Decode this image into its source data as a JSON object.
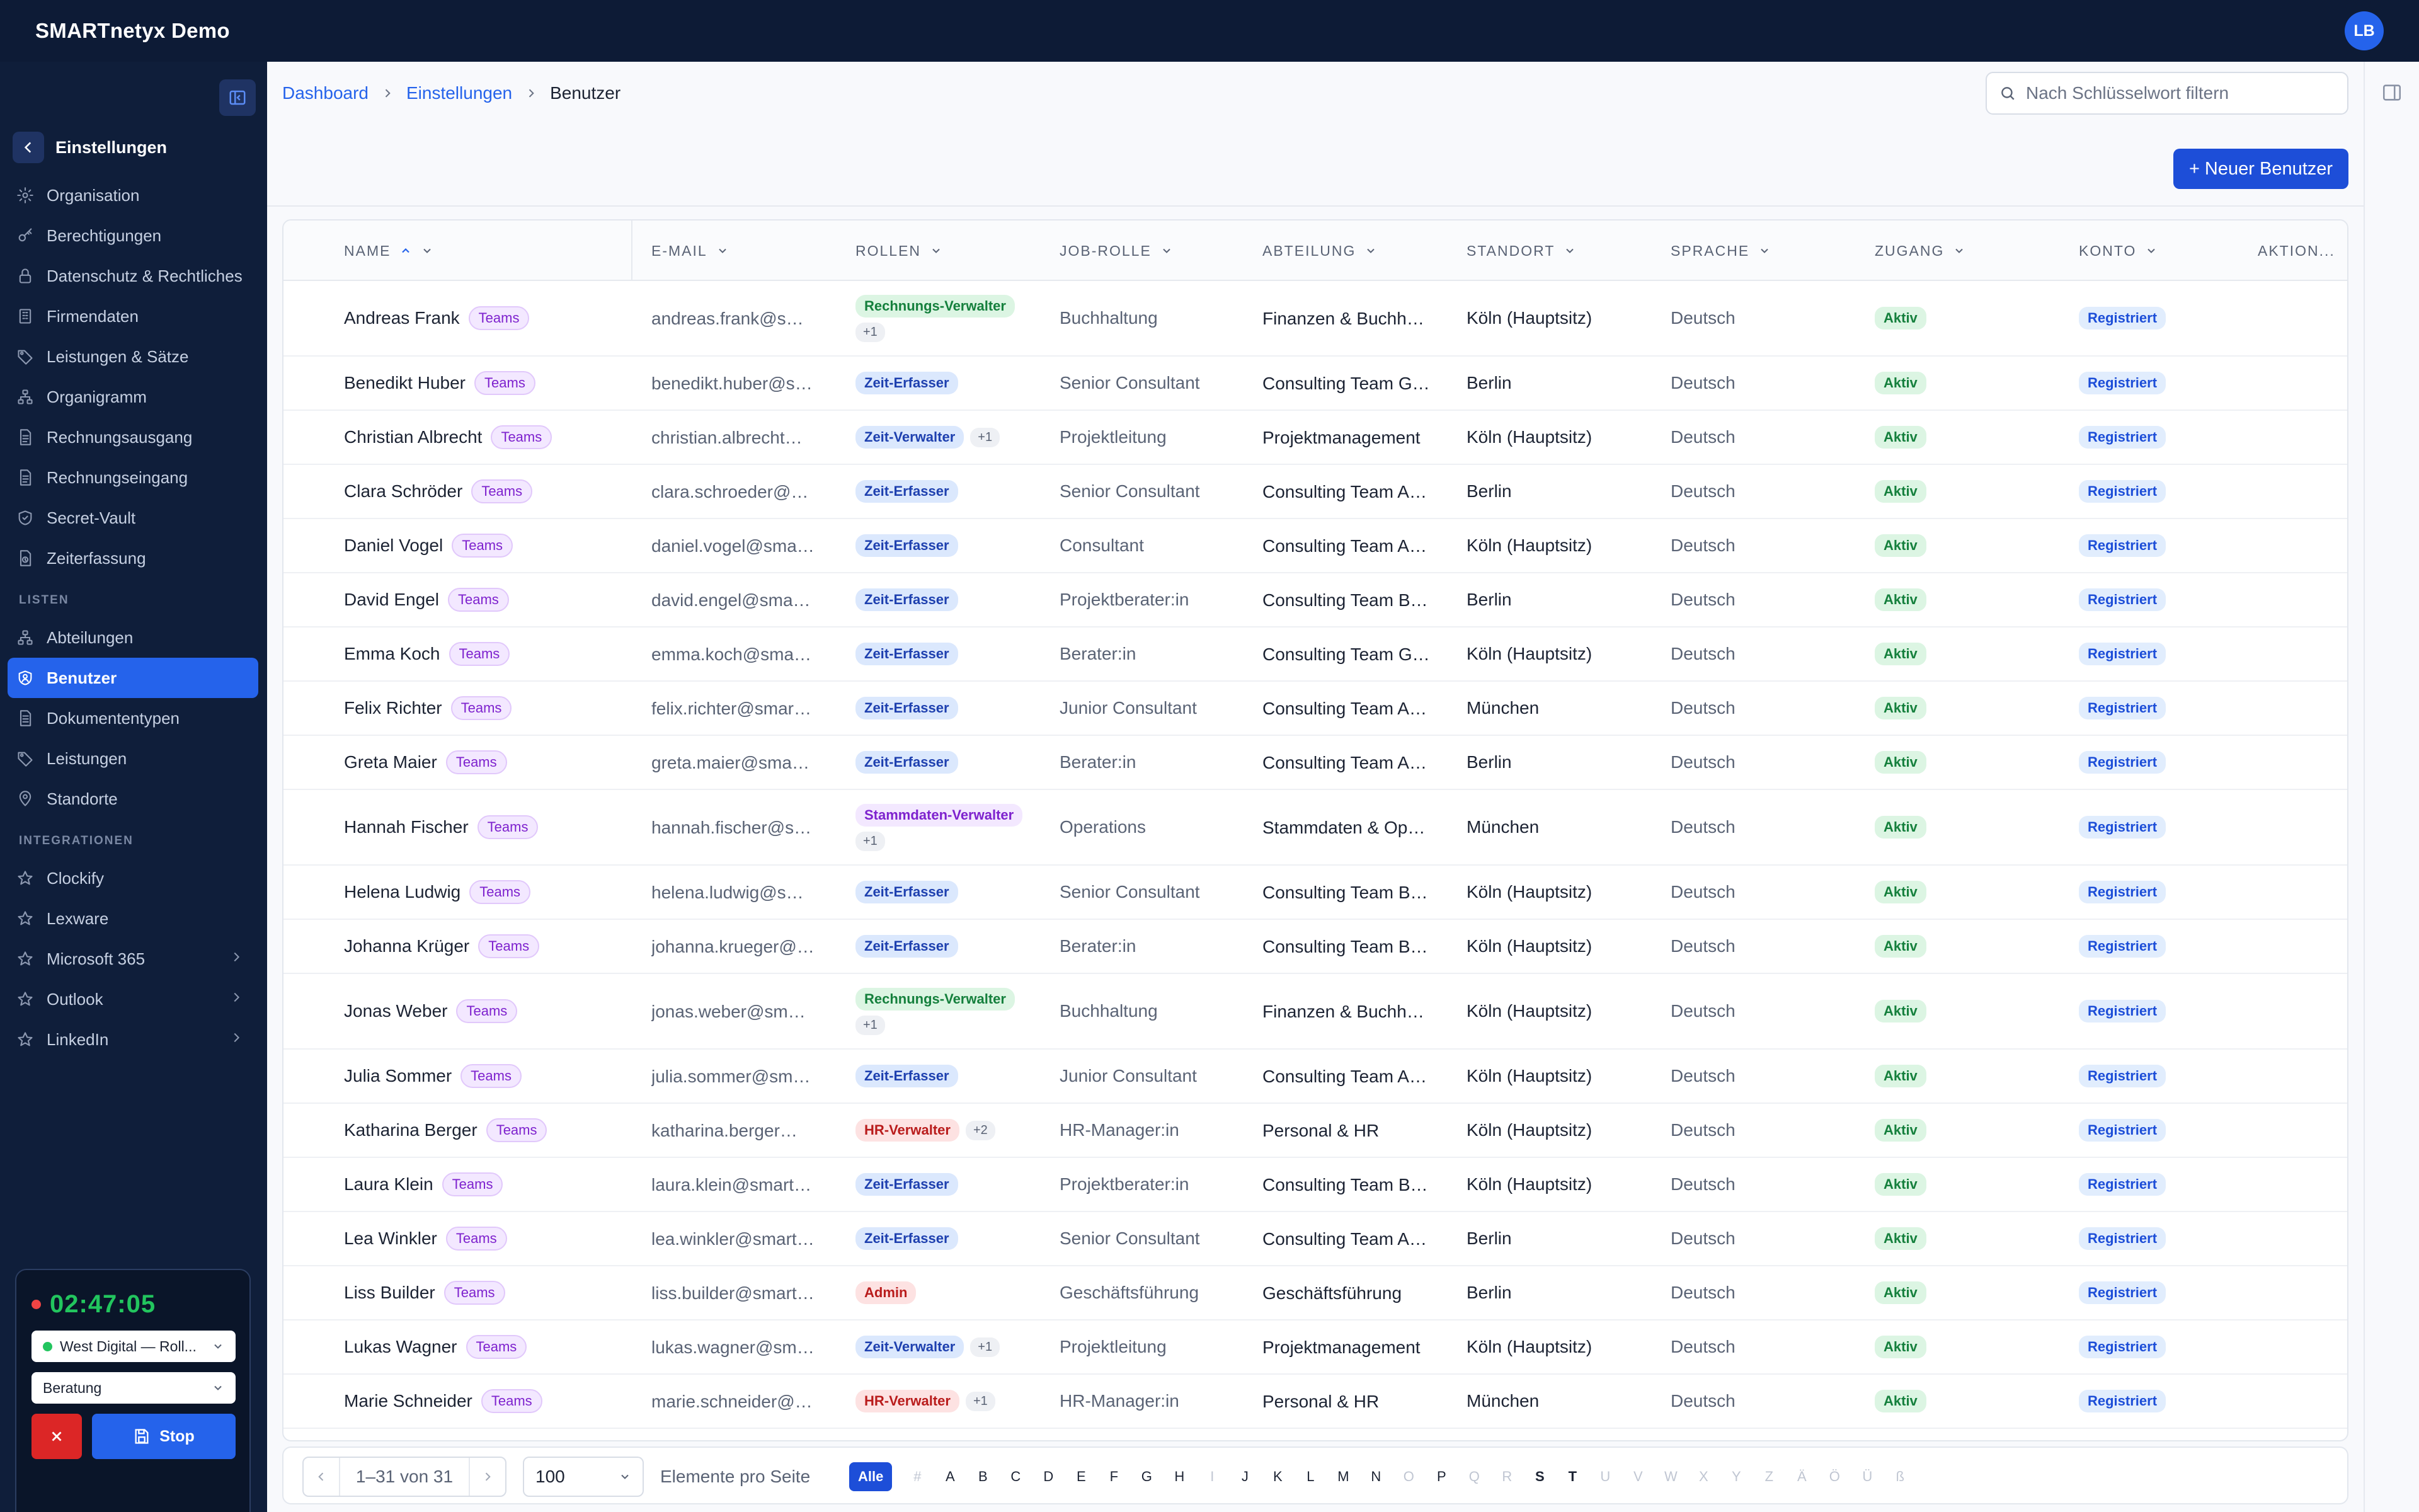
{
  "app": {
    "title": "SMARTnetyx Demo",
    "user_initials": "LB"
  },
  "sidebar": {
    "back_label": "Einstellungen",
    "items": [
      {
        "label": "Organisation",
        "icon": "gear-icon"
      },
      {
        "label": "Berechtigungen",
        "icon": "key-icon"
      },
      {
        "label": "Datenschutz & Rechtliches",
        "icon": "lock-icon"
      },
      {
        "label": "Firmendaten",
        "icon": "building-icon"
      },
      {
        "label": "Leistungen & Sätze",
        "icon": "tag-icon"
      },
      {
        "label": "Organigramm",
        "icon": "org-chart-icon"
      },
      {
        "label": "Rechnungsausgang",
        "icon": "invoice-icon"
      },
      {
        "label": "Rechnungseingang",
        "icon": "invoice-icon"
      },
      {
        "label": "Secret-Vault",
        "icon": "shield-icon"
      },
      {
        "label": "Zeiterfassung",
        "icon": "clock-file-icon"
      }
    ],
    "lists_title": "LISTEN",
    "lists": [
      {
        "label": "Abteilungen",
        "icon": "org-chart-icon"
      },
      {
        "label": "Benutzer",
        "icon": "user-shield-icon",
        "active": true
      },
      {
        "label": "Dokumententypen",
        "icon": "document-icon"
      },
      {
        "label": "Leistungen",
        "icon": "tag-icon"
      },
      {
        "label": "Standorte",
        "icon": "location-pin-icon"
      }
    ],
    "integrations_title": "INTEGRATIONEN",
    "integrations": [
      {
        "label": "Clockify",
        "icon": "star-icon"
      },
      {
        "label": "Lexware",
        "icon": "star-icon"
      },
      {
        "label": "Microsoft 365",
        "icon": "star-icon",
        "expandable": true
      },
      {
        "label": "Outlook",
        "icon": "star-icon",
        "expandable": true
      },
      {
        "label": "LinkedIn",
        "icon": "star-icon",
        "expandable": true
      }
    ]
  },
  "timer": {
    "time": "02:47:05",
    "project": "West Digital — Roll...",
    "activity": "Beratung",
    "stop_label": "Stop"
  },
  "breadcrumb": {
    "items": [
      "Dashboard",
      "Einstellungen"
    ],
    "current": "Benutzer"
  },
  "search": {
    "placeholder": "Nach Schlüsselwort filtern"
  },
  "actions": {
    "new_user": "+ Neuer Benutzer"
  },
  "table": {
    "columns": [
      "NAME",
      "E-MAIL",
      "ROLLEN",
      "JOB-ROLLE",
      "ABTEILUNG",
      "STANDORT",
      "SPRACHE",
      "ZUGANG",
      "KONTO",
      "AKTION..."
    ],
    "rows": [
      {
        "name": "Andreas Frank",
        "tag": "Teams",
        "email": "andreas.frank@smartnetyx.de",
        "role": "Rechnungs-Verwalter",
        "role_color": "green",
        "more": "+1",
        "job": "Buchhaltung",
        "dept": "Finanzen & Buchhaltung",
        "site": "Köln (Hauptsitz)",
        "lang": "Deutsch",
        "access": "Aktiv",
        "account": "Registriert"
      },
      {
        "name": "Benedikt Huber",
        "tag": "Teams",
        "email": "benedikt.huber@smartnetyx.de",
        "role": "Zeit-Erfasser",
        "role_color": "blue",
        "more": "",
        "job": "Senior Consultant",
        "dept": "Consulting Team Gamma",
        "site": "Berlin",
        "lang": "Deutsch",
        "access": "Aktiv",
        "account": "Registriert"
      },
      {
        "name": "Christian Albrecht",
        "tag": "Teams",
        "email": "christian.albrecht@smartnetyx.de",
        "role": "Zeit-Verwalter",
        "role_color": "blue",
        "more": "+1",
        "job": "Projektleitung",
        "dept": "Projektmanagement",
        "site": "Köln (Hauptsitz)",
        "lang": "Deutsch",
        "access": "Aktiv",
        "account": "Registriert"
      },
      {
        "name": "Clara Schröder",
        "tag": "Teams",
        "email": "clara.schroeder@smartnetyx.de",
        "role": "Zeit-Erfasser",
        "role_color": "blue",
        "more": "",
        "job": "Senior Consultant",
        "dept": "Consulting Team Alpha",
        "site": "Berlin",
        "lang": "Deutsch",
        "access": "Aktiv",
        "account": "Registriert"
      },
      {
        "name": "Daniel Vogel",
        "tag": "Teams",
        "email": "daniel.vogel@smartnetyx.de",
        "role": "Zeit-Erfasser",
        "role_color": "blue",
        "more": "",
        "job": "Consultant",
        "dept": "Consulting Team Alpha",
        "site": "Köln (Hauptsitz)",
        "lang": "Deutsch",
        "access": "Aktiv",
        "account": "Registriert"
      },
      {
        "name": "David Engel",
        "tag": "Teams",
        "email": "david.engel@smartnetyx.de",
        "role": "Zeit-Erfasser",
        "role_color": "blue",
        "more": "",
        "job": "Projektberater:in",
        "dept": "Consulting Team Beta",
        "site": "Berlin",
        "lang": "Deutsch",
        "access": "Aktiv",
        "account": "Registriert"
      },
      {
        "name": "Emma Koch",
        "tag": "Teams",
        "email": "emma.koch@smartnetyx.de",
        "role": "Zeit-Erfasser",
        "role_color": "blue",
        "more": "",
        "job": "Berater:in",
        "dept": "Consulting Team Gamma",
        "site": "Köln (Hauptsitz)",
        "lang": "Deutsch",
        "access": "Aktiv",
        "account": "Registriert"
      },
      {
        "name": "Felix Richter",
        "tag": "Teams",
        "email": "felix.richter@smartnetyx.de",
        "role": "Zeit-Erfasser",
        "role_color": "blue",
        "more": "",
        "job": "Junior Consultant",
        "dept": "Consulting Team Alpha",
        "site": "München",
        "lang": "Deutsch",
        "access": "Aktiv",
        "account": "Registriert"
      },
      {
        "name": "Greta Maier",
        "tag": "Teams",
        "email": "greta.maier@smartnetyx.de",
        "role": "Zeit-Erfasser",
        "role_color": "blue",
        "more": "",
        "job": "Berater:in",
        "dept": "Consulting Team Alpha",
        "site": "Berlin",
        "lang": "Deutsch",
        "access": "Aktiv",
        "account": "Registriert"
      },
      {
        "name": "Hannah Fischer",
        "tag": "Teams",
        "email": "hannah.fischer@smartnetyx.de",
        "role": "Stammdaten-Verwalter",
        "role_color": "purple",
        "more": "+1",
        "job": "Operations",
        "dept": "Stammdaten & Operations",
        "site": "München",
        "lang": "Deutsch",
        "access": "Aktiv",
        "account": "Registriert"
      },
      {
        "name": "Helena Ludwig",
        "tag": "Teams",
        "email": "helena.ludwig@smartnetyx.de",
        "role": "Zeit-Erfasser",
        "role_color": "blue",
        "more": "",
        "job": "Senior Consultant",
        "dept": "Consulting Team Beta",
        "site": "Köln (Hauptsitz)",
        "lang": "Deutsch",
        "access": "Aktiv",
        "account": "Registriert"
      },
      {
        "name": "Johanna Krüger",
        "tag": "Teams",
        "email": "johanna.krueger@smartnetyx.de",
        "role": "Zeit-Erfasser",
        "role_color": "blue",
        "more": "",
        "job": "Berater:in",
        "dept": "Consulting Team Beta",
        "site": "Köln (Hauptsitz)",
        "lang": "Deutsch",
        "access": "Aktiv",
        "account": "Registriert"
      },
      {
        "name": "Jonas Weber",
        "tag": "Teams",
        "email": "jonas.weber@smartnetyx.de",
        "role": "Rechnungs-Verwalter",
        "role_color": "green",
        "more": "+1",
        "job": "Buchhaltung",
        "dept": "Finanzen & Buchhaltung",
        "site": "Köln (Hauptsitz)",
        "lang": "Deutsch",
        "access": "Aktiv",
        "account": "Registriert"
      },
      {
        "name": "Julia Sommer",
        "tag": "Teams",
        "email": "julia.sommer@smartnetyx.de",
        "role": "Zeit-Erfasser",
        "role_color": "blue",
        "more": "",
        "job": "Junior Consultant",
        "dept": "Consulting Team Alpha",
        "site": "Köln (Hauptsitz)",
        "lang": "Deutsch",
        "access": "Aktiv",
        "account": "Registriert"
      },
      {
        "name": "Katharina Berger",
        "tag": "Teams",
        "email": "katharina.berger@smartnetyx.de",
        "role": "HR-Verwalter",
        "role_color": "pink",
        "more": "+2",
        "job": "HR-Manager:in",
        "dept": "Personal & HR",
        "site": "Köln (Hauptsitz)",
        "lang": "Deutsch",
        "access": "Aktiv",
        "account": "Registriert"
      },
      {
        "name": "Laura Klein",
        "tag": "Teams",
        "email": "laura.klein@smartnetyx.de",
        "role": "Zeit-Erfasser",
        "role_color": "blue",
        "more": "",
        "job": "Projektberater:in",
        "dept": "Consulting Team Beta",
        "site": "Köln (Hauptsitz)",
        "lang": "Deutsch",
        "access": "Aktiv",
        "account": "Registriert"
      },
      {
        "name": "Lea Winkler",
        "tag": "Teams",
        "email": "lea.winkler@smartnetyx.de",
        "role": "Zeit-Erfasser",
        "role_color": "blue",
        "more": "",
        "job": "Senior Consultant",
        "dept": "Consulting Team Alpha",
        "site": "Berlin",
        "lang": "Deutsch",
        "access": "Aktiv",
        "account": "Registriert"
      },
      {
        "name": "Liss Builder",
        "tag": "Teams",
        "email": "liss.builder@smartnetyx.de",
        "role": "Admin",
        "role_color": "pink",
        "more": "",
        "job": "Geschäftsführung",
        "dept": "Geschäftsführung",
        "site": "Berlin",
        "lang": "Deutsch",
        "access": "Aktiv",
        "account": "Registriert"
      },
      {
        "name": "Lukas Wagner",
        "tag": "Teams",
        "email": "lukas.wagner@smartnetyx.de",
        "role": "Zeit-Verwalter",
        "role_color": "blue",
        "more": "+1",
        "job": "Projektleitung",
        "dept": "Projektmanagement",
        "site": "Köln (Hauptsitz)",
        "lang": "Deutsch",
        "access": "Aktiv",
        "account": "Registriert"
      },
      {
        "name": "Marie Schneider",
        "tag": "Teams",
        "email": "marie.schneider@smartnetyx.de",
        "role": "HR-Verwalter",
        "role_color": "pink",
        "more": "+1",
        "job": "HR-Manager:in",
        "dept": "Personal & HR",
        "site": "München",
        "lang": "Deutsch",
        "access": "Aktiv",
        "account": "Registriert"
      }
    ]
  },
  "pagination": {
    "range": "1–31 von 31",
    "page_size": "100",
    "page_size_label": "Elemente pro Seite",
    "all_label": "Alle",
    "letters": [
      "#",
      "A",
      "B",
      "C",
      "D",
      "E",
      "F",
      "G",
      "H",
      "I",
      "J",
      "K",
      "L",
      "M",
      "N",
      "O",
      "P",
      "Q",
      "R",
      "S",
      "T",
      "U",
      "V",
      "W",
      "X",
      "Y",
      "Z",
      "Ä",
      "Ö",
      "Ü",
      "ß"
    ],
    "enabled_letters": [
      "A",
      "B",
      "C",
      "D",
      "E",
      "F",
      "G",
      "H",
      "J",
      "K",
      "L",
      "M",
      "N",
      "P",
      "S",
      "T"
    ]
  }
}
